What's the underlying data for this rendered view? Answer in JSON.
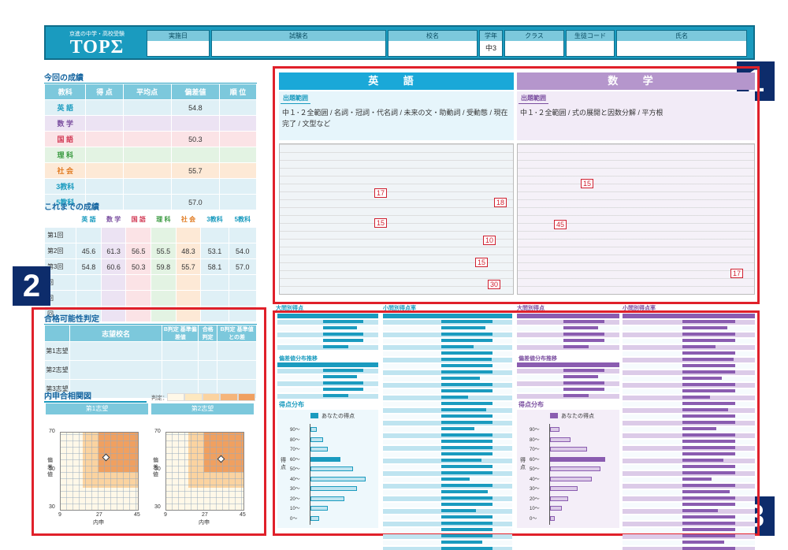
{
  "header": {
    "logo_sub": "京進の中学・高校受験",
    "logo_title": "TOPΣ",
    "cells": [
      {
        "label": "実施日",
        "value": ""
      },
      {
        "label": "試験名",
        "value": ""
      },
      {
        "label": "校名",
        "value": ""
      },
      {
        "label": "学年",
        "value": "中3"
      },
      {
        "label": "クラス",
        "value": ""
      },
      {
        "label": "生徒コード",
        "value": ""
      },
      {
        "label": "氏名",
        "value": ""
      }
    ]
  },
  "current": {
    "title": "今回の成績",
    "headers": [
      "教科",
      "得 点",
      "平均点",
      "偏差値",
      "順 位"
    ],
    "rows": [
      {
        "subject": "英 語",
        "score": "",
        "avg": "",
        "dev": "54.8",
        "rank": ""
      },
      {
        "subject": "数 学",
        "score": "",
        "avg": "",
        "dev": "",
        "rank": ""
      },
      {
        "subject": "国 語",
        "score": "",
        "avg": "",
        "dev": "50.3",
        "rank": ""
      },
      {
        "subject": "理 科",
        "score": "",
        "avg": "",
        "dev": "",
        "rank": ""
      },
      {
        "subject": "社 会",
        "score": "",
        "avg": "",
        "dev": "55.7",
        "rank": ""
      },
      {
        "subject": "3教科",
        "score": "",
        "avg": "",
        "dev": "",
        "rank": ""
      },
      {
        "subject": "5教科",
        "score": "",
        "avg": "",
        "dev": "57.0",
        "rank": ""
      }
    ],
    "colors": [
      "#dff0f6",
      "#ece3f3",
      "#fbe3e6",
      "#e3f3e3",
      "#fde9d6",
      "#dff0f6",
      "#dff0f6"
    ],
    "text_colors": [
      "#1a9bbf",
      "#7b4fa0",
      "#d23a55",
      "#3a9a40",
      "#e07a20",
      "#1a9bbf",
      "#1a9bbf"
    ]
  },
  "history": {
    "title": "これまでの成績",
    "headers": [
      "英 語",
      "数 学",
      "国 語",
      "理 科",
      "社 会",
      "3教科",
      "5教科"
    ],
    "rows": [
      {
        "label": "第1回",
        "vals": [
          "",
          "",
          "",
          "",
          "",
          "",
          ""
        ]
      },
      {
        "label": "第2回",
        "vals": [
          "45.6",
          "61.3",
          "56.5",
          "55.5",
          "48.3",
          "53.1",
          "54.0"
        ]
      },
      {
        "label": "第3回",
        "vals": [
          "54.8",
          "60.6",
          "50.3",
          "59.8",
          "55.7",
          "58.1",
          "57.0"
        ]
      },
      {
        "label": "回",
        "vals": [
          "",
          "",
          "",
          "",
          "",
          "",
          ""
        ]
      },
      {
        "label": "回",
        "vals": [
          "",
          "",
          "",
          "",
          "",
          "",
          ""
        ]
      },
      {
        "label": "回",
        "vals": [
          "",
          "",
          "",
          "",
          "",
          "",
          ""
        ]
      }
    ]
  },
  "pass": {
    "title": "合格可能性判定",
    "headers": [
      "志望校名",
      "B判定 基準偏差値",
      "合格 判定",
      "B判定 基準値との差"
    ],
    "rows": [
      {
        "label": "第1志望",
        "school": "",
        "ref": "",
        "judge": "",
        "diff": ""
      },
      {
        "label": "第2志望",
        "school": "",
        "ref": "",
        "judge": "",
        "diff": ""
      },
      {
        "label": "第3志望",
        "school": "",
        "ref": "",
        "judge": "",
        "diff": ""
      }
    ]
  },
  "scatter": {
    "title": "内申合相関図",
    "legend_label": "判定：",
    "legend": [
      "",
      "",
      "",
      "",
      ""
    ],
    "panels": [
      "第1志望",
      "第2志望"
    ],
    "y_ticks": [
      "70",
      "50",
      "30"
    ],
    "x_ticks": [
      "9",
      "27",
      "45"
    ],
    "y_axis_title": "偏差値",
    "x_axis_title": "内申"
  },
  "badges": [
    "1",
    "2",
    "3"
  ],
  "english": {
    "header": "英 語",
    "range_label": "出題範囲",
    "range_text": "中１･２全範囲 / 名詞・冠詞・代名詞 / 未来の文・助動詞 / 受動態 / 現在完了 / 文型など",
    "marks": [
      "17",
      "18",
      "15",
      "10",
      "15",
      "30"
    ]
  },
  "math": {
    "header": "数 学",
    "range_label": "出題範囲",
    "range_text": "中１･２全範囲 / 式の展開と因数分解 / 平方根",
    "marks": [
      "15",
      "45",
      "17"
    ]
  },
  "analysis": {
    "left_title_a": "大問別得点",
    "left_title_b": "小問別得点率",
    "dev_title": "偏差値分布推移",
    "dist_title": "得点分布",
    "dist_legend": "あなたの得点",
    "dist_axis": "得点",
    "dist_ticks": [
      "90〜",
      "80〜",
      "70〜",
      "60〜",
      "50〜",
      "40〜",
      "30〜",
      "20〜",
      "10〜",
      "0〜"
    ],
    "en_bars": [
      3,
      6,
      8,
      14,
      20,
      26,
      22,
      16,
      8,
      4
    ],
    "math_bars": [
      4,
      9,
      16,
      24,
      22,
      18,
      12,
      8,
      5,
      2
    ],
    "colors": {
      "en": "#1a9bbf",
      "en_light": "#bfe4f0",
      "math": "#8a5cb0",
      "math_light": "#dccbe8"
    }
  },
  "colors": {
    "brand": "#1a9bbf",
    "math": "#b596cc",
    "english": "#1aa8d8",
    "badge": "#0d2c6b",
    "highlight": "#e0202a",
    "orange": "#f0a060"
  }
}
